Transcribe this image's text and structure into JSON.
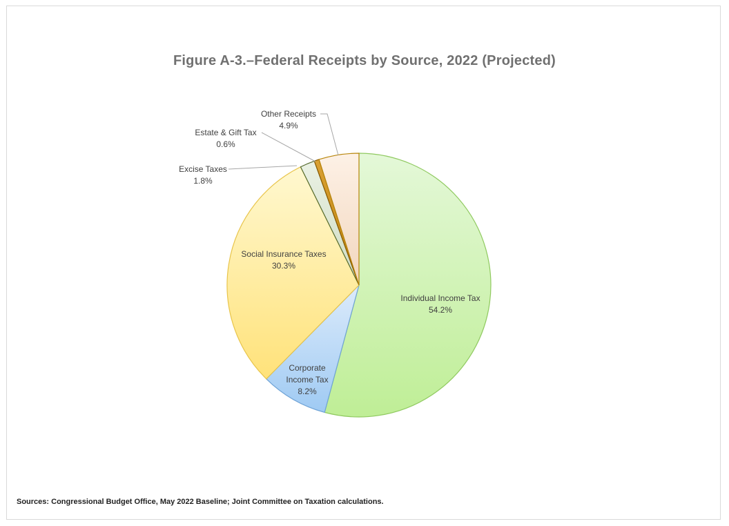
{
  "chart_data": {
    "type": "pie",
    "title": "Figure A-3.–Federal Receipts by Source, 2022 (Projected)",
    "slices": [
      {
        "name": "Individual Income Tax",
        "label_lines": [
          "Individual Income Tax"
        ],
        "value": 54.2,
        "value_label": "54.2%",
        "color_light": "#e4f8d8",
        "color_dark": "#bfee96",
        "stroke": "#8fc95f"
      },
      {
        "name": "Corporate Income Tax",
        "label_lines": [
          "Corporate",
          "Income Tax"
        ],
        "value": 8.2,
        "value_label": "8.2%",
        "color_light": "#dcebfb",
        "color_dark": "#9fcaf3",
        "stroke": "#6fa3d6"
      },
      {
        "name": "Social Insurance Taxes",
        "label_lines": [
          "Social Insurance Taxes"
        ],
        "value": 30.3,
        "value_label": "30.3%",
        "color_light": "#fff8d0",
        "color_dark": "#ffe27a",
        "stroke": "#e8c44a"
      },
      {
        "name": "Excise Taxes",
        "label_lines": [
          "Excise Taxes"
        ],
        "value": 1.8,
        "value_label": "1.8%",
        "color_light": "#eaf1e4",
        "color_dark": "#cfdcc3",
        "stroke": "#556b2f"
      },
      {
        "name": "Estate & Gift Tax",
        "label_lines": [
          "Estate & Gift Tax"
        ],
        "value": 0.6,
        "value_label": "0.6%",
        "color_light": "#d9a033",
        "color_dark": "#c08410",
        "stroke": "#8a5a00"
      },
      {
        "name": "Other Receipts",
        "label_lines": [
          "Other Receipts"
        ],
        "value": 4.9,
        "value_label": "4.9%",
        "color_light": "#fdf1e6",
        "color_dark": "#f2d6bd",
        "stroke": "#b8860b"
      }
    ],
    "legend": "none",
    "data_labels": "category name and percentage"
  },
  "source_note": "Sources: Congressional Budget Office, May 2022 Baseline; Joint Committee on Taxation calculations."
}
